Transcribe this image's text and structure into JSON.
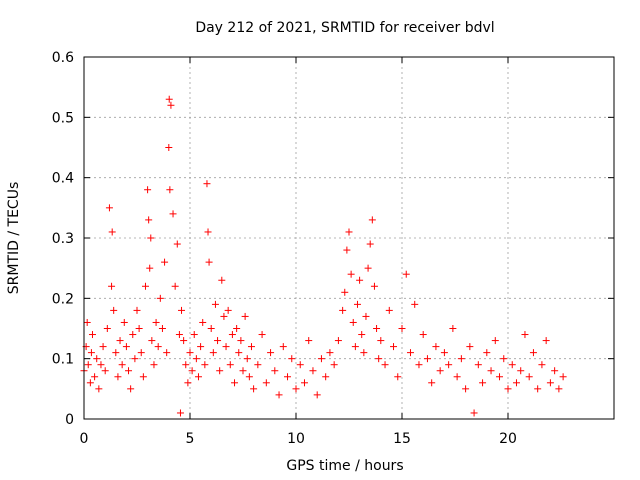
{
  "chart_data": {
    "type": "scatter",
    "title": "Day 212 of 2021, SRMTID for receiver bdvl",
    "xlabel": "GPS time / hours",
    "ylabel": "SRMTID / TECUs",
    "xlim": [
      0,
      25
    ],
    "ylim": [
      0,
      0.6
    ],
    "xticks": [
      0,
      5,
      10,
      15,
      20
    ],
    "xtick_labels": [
      "0",
      "5",
      "10",
      "15",
      "20"
    ],
    "yticks": [
      0,
      0.1,
      0.2,
      0.3,
      0.4,
      0.5,
      0.6
    ],
    "ytick_labels": [
      "0",
      "0.1",
      "0.2",
      "0.3",
      "0.4",
      "0.5",
      "0.6"
    ],
    "grid": true,
    "marker": "+",
    "series_color": "#ff0000",
    "series": [
      {
        "name": "SRMTID",
        "x": [
          0.0,
          0.1,
          0.15,
          0.2,
          0.3,
          0.35,
          0.4,
          0.5,
          0.6,
          0.7,
          0.8,
          0.9,
          1.0,
          1.1,
          1.2,
          1.3,
          1.33,
          1.4,
          1.5,
          1.6,
          1.7,
          1.8,
          1.9,
          2.0,
          2.1,
          2.2,
          2.3,
          2.4,
          2.5,
          2.6,
          2.7,
          2.8,
          2.9,
          3.0,
          3.05,
          3.1,
          3.15,
          3.2,
          3.3,
          3.4,
          3.5,
          3.6,
          3.7,
          3.8,
          3.9,
          4.0,
          4.02,
          4.05,
          4.1,
          4.2,
          4.3,
          4.4,
          4.5,
          4.55,
          4.6,
          4.7,
          4.8,
          4.9,
          5.0,
          5.1,
          5.2,
          5.3,
          5.4,
          5.5,
          5.6,
          5.7,
          5.8,
          5.85,
          5.9,
          6.0,
          6.1,
          6.2,
          6.3,
          6.4,
          6.5,
          6.6,
          6.7,
          6.8,
          6.9,
          7.0,
          7.1,
          7.2,
          7.3,
          7.4,
          7.5,
          7.6,
          7.7,
          7.8,
          7.9,
          8.0,
          8.2,
          8.4,
          8.6,
          8.8,
          9.0,
          9.2,
          9.4,
          9.6,
          9.8,
          10.0,
          10.2,
          10.4,
          10.6,
          10.8,
          11.0,
          11.2,
          11.4,
          11.6,
          11.8,
          12.0,
          12.2,
          12.3,
          12.4,
          12.5,
          12.6,
          12.7,
          12.8,
          12.9,
          13.0,
          13.1,
          13.2,
          13.3,
          13.4,
          13.5,
          13.6,
          13.7,
          13.8,
          13.9,
          14.0,
          14.2,
          14.4,
          14.6,
          14.8,
          15.0,
          15.2,
          15.4,
          15.6,
          15.8,
          16.0,
          16.2,
          16.4,
          16.6,
          16.8,
          17.0,
          17.2,
          17.4,
          17.6,
          17.8,
          18.0,
          18.2,
          18.4,
          18.6,
          18.8,
          19.0,
          19.2,
          19.4,
          19.6,
          19.8,
          20.0,
          20.2,
          20.4,
          20.6,
          20.8,
          21.0,
          21.2,
          21.4,
          21.6,
          21.8,
          22.0,
          22.2,
          22.4,
          22.6
        ],
        "y": [
          0.08,
          0.12,
          0.16,
          0.09,
          0.06,
          0.11,
          0.14,
          0.07,
          0.1,
          0.05,
          0.09,
          0.12,
          0.08,
          0.15,
          0.35,
          0.22,
          0.31,
          0.18,
          0.11,
          0.07,
          0.13,
          0.09,
          0.16,
          0.12,
          0.08,
          0.05,
          0.14,
          0.1,
          0.18,
          0.15,
          0.11,
          0.07,
          0.22,
          0.38,
          0.33,
          0.25,
          0.3,
          0.13,
          0.09,
          0.16,
          0.12,
          0.2,
          0.15,
          0.26,
          0.11,
          0.45,
          0.53,
          0.38,
          0.52,
          0.34,
          0.22,
          0.29,
          0.14,
          0.01,
          0.18,
          0.13,
          0.09,
          0.06,
          0.11,
          0.08,
          0.14,
          0.1,
          0.07,
          0.12,
          0.16,
          0.09,
          0.39,
          0.31,
          0.26,
          0.15,
          0.11,
          0.19,
          0.13,
          0.08,
          0.23,
          0.17,
          0.12,
          0.18,
          0.09,
          0.14,
          0.06,
          0.15,
          0.11,
          0.13,
          0.08,
          0.17,
          0.1,
          0.07,
          0.12,
          0.05,
          0.09,
          0.14,
          0.06,
          0.11,
          0.08,
          0.04,
          0.12,
          0.07,
          0.1,
          0.05,
          0.09,
          0.06,
          0.13,
          0.08,
          0.04,
          0.1,
          0.07,
          0.11,
          0.09,
          0.13,
          0.18,
          0.21,
          0.28,
          0.31,
          0.24,
          0.16,
          0.12,
          0.19,
          0.23,
          0.14,
          0.11,
          0.17,
          0.25,
          0.29,
          0.33,
          0.22,
          0.15,
          0.1,
          0.13,
          0.09,
          0.18,
          0.12,
          0.07,
          0.15,
          0.24,
          0.11,
          0.19,
          0.09,
          0.14,
          0.1,
          0.06,
          0.12,
          0.08,
          0.11,
          0.09,
          0.15,
          0.07,
          0.1,
          0.05,
          0.12,
          0.01,
          0.09,
          0.06,
          0.11,
          0.08,
          0.13,
          0.07,
          0.1,
          0.05,
          0.09,
          0.06,
          0.08,
          0.14,
          0.07,
          0.11,
          0.05,
          0.09,
          0.13,
          0.06,
          0.08,
          0.05,
          0.07
        ]
      }
    ]
  }
}
